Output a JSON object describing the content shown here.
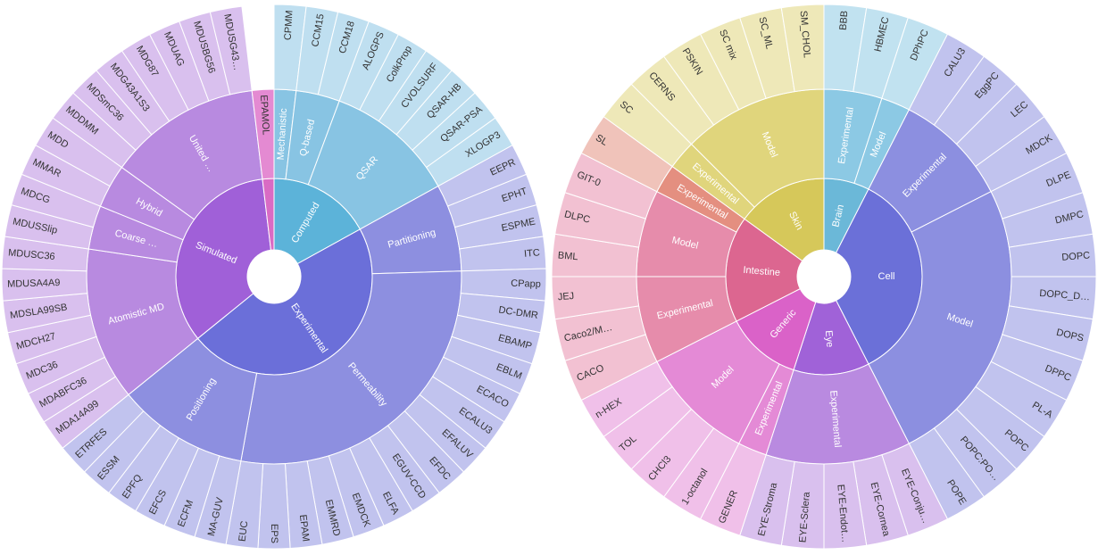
{
  "chart_data": [
    {
      "type": "sunburst",
      "title": "",
      "tree": [
        {
          "name": "Computed",
          "color": "#5cb3d9",
          "children": [
            {
              "name": "Mechanistic",
              "color": "#88c4e3",
              "children": [
                {
                  "name": "CPMM",
                  "value": 1
                }
              ]
            },
            {
              "name": "Q-based",
              "color": "#88c4e3",
              "children": [
                {
                  "name": "CCM15",
                  "value": 1
                },
                {
                  "name": "CCM18",
                  "value": 1
                }
              ]
            },
            {
              "name": "QSAR",
              "color": "#88c4e3",
              "children": [
                {
                  "name": "ALOGPS",
                  "value": 1
                },
                {
                  "name": "ColkProp",
                  "value": 1
                },
                {
                  "name": "CVOLSURF",
                  "value": 1
                },
                {
                  "name": "QSAR-HB",
                  "value": 1
                },
                {
                  "name": "QSAR-PSA",
                  "value": 1
                },
                {
                  "name": "XLOGP3",
                  "value": 1
                }
              ]
            }
          ]
        },
        {
          "name": "Experimental",
          "color": "#6b6fd9",
          "children": [
            {
              "name": "Partitioning",
              "color": "#8d8fe0",
              "children": [
                {
                  "name": "EEPR",
                  "value": 1
                },
                {
                  "name": "EPHT",
                  "value": 1
                },
                {
                  "name": "ESPME",
                  "value": 1
                },
                {
                  "name": "ITC",
                  "value": 1
                }
              ]
            },
            {
              "name": "Permeability",
              "color": "#8d8fe0",
              "children": [
                {
                  "name": "CPapp",
                  "value": 1
                },
                {
                  "name": "DC-DMR",
                  "value": 1
                },
                {
                  "name": "EBAMP",
                  "value": 1
                },
                {
                  "name": "EBLM",
                  "value": 1
                },
                {
                  "name": "ECACO",
                  "value": 1
                },
                {
                  "name": "ECALU3",
                  "value": 1
                },
                {
                  "name": "EFALUV",
                  "value": 1
                },
                {
                  "name": "EFDC",
                  "value": 1
                },
                {
                  "name": "EGUV-CCD",
                  "value": 1
                },
                {
                  "name": "ELFA",
                  "value": 1
                },
                {
                  "name": "EMDCK",
                  "value": 1
                },
                {
                  "name": "EMMRD",
                  "value": 1
                },
                {
                  "name": "EPAM",
                  "value": 1
                },
                {
                  "name": "EPS",
                  "value": 1
                },
                {
                  "name": "EUC",
                  "value": 1
                }
              ]
            },
            {
              "name": "Positioning",
              "color": "#8d8fe0",
              "children": [
                {
                  "name": "MA-GUV",
                  "value": 1
                },
                {
                  "name": "ECFM",
                  "value": 1
                },
                {
                  "name": "EFCS",
                  "value": 1
                },
                {
                  "name": "EPFQ",
                  "value": 1
                },
                {
                  "name": "ESSM",
                  "value": 1
                },
                {
                  "name": "ETRFES",
                  "value": 1
                }
              ]
            }
          ]
        },
        {
          "name": "Simulated",
          "color": "#a060d8",
          "children": [
            {
              "name": "Atomistic MD",
              "color": "#b88ae0",
              "children": [
                {
                  "name": "MDA14A99",
                  "value": 1
                },
                {
                  "name": "MDABFC36",
                  "value": 1
                },
                {
                  "name": "MDC36",
                  "value": 1
                },
                {
                  "name": "MDCH27",
                  "value": 1
                },
                {
                  "name": "MDSLA99SB",
                  "value": 1
                },
                {
                  "name": "MDUSA4A9",
                  "value": 1
                },
                {
                  "name": "MDUSC36",
                  "value": 1
                }
              ]
            },
            {
              "name": "Coarse …",
              "color": "#b88ae0",
              "children": [
                {
                  "name": "MDUSSlip",
                  "value": 1
                },
                {
                  "name": "MDCG",
                  "value": 1
                }
              ]
            },
            {
              "name": "Hybrid",
              "color": "#b88ae0",
              "children": [
                {
                  "name": "MMAR",
                  "value": 1
                },
                {
                  "name": "MDD",
                  "value": 1
                }
              ]
            },
            {
              "name": "United …",
              "color": "#b88ae0",
              "children": [
                {
                  "name": "MDDMM",
                  "value": 1
                },
                {
                  "name": "MDSmC36",
                  "value": 1
                },
                {
                  "name": "MDG43A1S3",
                  "value": 1
                },
                {
                  "name": "MDG87",
                  "value": 1
                },
                {
                  "name": "MDUAG",
                  "value": 1
                },
                {
                  "name": "MDUSBG56",
                  "value": 1
                },
                {
                  "name": "MDUSG43…",
                  "value": 1
                }
              ]
            }
          ]
        },
        {
          "name": "",
          "color": "#d96bc4",
          "children": [
            {
              "name": "EPAMOL",
              "color": "#e48ad2",
              "value": 1
            }
          ]
        }
      ]
    },
    {
      "type": "sunburst",
      "title": "",
      "tree": [
        {
          "name": "Brain",
          "color": "#6bb8d8",
          "children": [
            {
              "name": "Experimental",
              "color": "#8cc9e4",
              "children": [
                {
                  "name": "BBB",
                  "value": 1
                },
                {
                  "name": "HBMEC",
                  "value": 1
                }
              ]
            },
            {
              "name": "Model",
              "color": "#8cc9e4",
              "children": [
                {
                  "name": "DPhPC",
                  "value": 1
                }
              ]
            }
          ]
        },
        {
          "name": "Cell",
          "color": "#6b70d8",
          "children": [
            {
              "name": "Experimental",
              "color": "#8c8fe0",
              "children": [
                {
                  "name": "CALU3",
                  "value": 1
                },
                {
                  "name": "EggPC",
                  "value": 1
                },
                {
                  "name": "LEC",
                  "value": 1
                },
                {
                  "name": "MDCK",
                  "value": 1
                }
              ]
            },
            {
              "name": "Model",
              "color": "#8c8fe0",
              "children": [
                {
                  "name": "DLPE",
                  "value": 1
                },
                {
                  "name": "DMPC",
                  "value": 1
                },
                {
                  "name": "DOPC",
                  "value": 1
                },
                {
                  "name": "DOPC_D…",
                  "value": 1
                },
                {
                  "name": "DOPS",
                  "value": 1
                },
                {
                  "name": "DPPC",
                  "value": 1
                },
                {
                  "name": "PL-A",
                  "value": 1
                },
                {
                  "name": "POPC",
                  "value": 1
                },
                {
                  "name": "POPC:PO…",
                  "value": 1
                },
                {
                  "name": "POPE",
                  "value": 1
                }
              ]
            }
          ]
        },
        {
          "name": "Eye",
          "color": "#a062d8",
          "children": [
            {
              "name": "Experimental",
              "color": "#b98ae0",
              "children": [
                {
                  "name": "EYE-Conju…",
                  "value": 1
                },
                {
                  "name": "EYE-Cornea",
                  "value": 1
                },
                {
                  "name": "EYE-Endot…",
                  "value": 1
                },
                {
                  "name": "EYE-Sclera",
                  "value": 1
                },
                {
                  "name": "EYE-Stroma",
                  "value": 1
                }
              ]
            }
          ]
        },
        {
          "name": "Generic",
          "color": "#da62c8",
          "children": [
            {
              "name": "Experimental",
              "color": "#e48ad6",
              "children": [
                {
                  "name": "GENER",
                  "value": 1
                }
              ]
            },
            {
              "name": "Model",
              "color": "#e48ad6",
              "children": [
                {
                  "name": "1-octanol",
                  "value": 1
                },
                {
                  "name": "CHCl3",
                  "value": 1
                },
                {
                  "name": "TOL",
                  "value": 1
                },
                {
                  "name": "n-HEX",
                  "value": 1
                }
              ]
            }
          ]
        },
        {
          "name": "Intestine",
          "color": "#dc6690",
          "children": [
            {
              "name": "Experimental",
              "color": "#e68cab",
              "children": [
                {
                  "name": "CACO",
                  "value": 1
                },
                {
                  "name": "Caco2/M…",
                  "value": 1
                },
                {
                  "name": "JEJ",
                  "value": 1
                }
              ]
            },
            {
              "name": "Model",
              "color": "#e68cab",
              "children": [
                {
                  "name": "BML",
                  "value": 1
                },
                {
                  "name": "DLPC",
                  "value": 1
                },
                {
                  "name": "GIT-0",
                  "value": 1
                }
              ]
            },
            {
              "name": "Experimental",
              "color": "#e48f80",
              "children": [
                {
                  "name": "SL",
                  "value": 1
                }
              ]
            }
          ]
        },
        {
          "name": "Skin",
          "color": "#d6c85a",
          "children": [
            {
              "name": "Experimental",
              "color": "#e0d57c",
              "children": [
                {
                  "name": "SC",
                  "value": 1
                }
              ]
            },
            {
              "name": "Model",
              "color": "#e0d57c",
              "children": [
                {
                  "name": "CERNS",
                  "value": 1
                },
                {
                  "name": "PSKIN",
                  "value": 1
                },
                {
                  "name": "SC mix",
                  "value": 1
                },
                {
                  "name": "SC_ML",
                  "value": 1
                },
                {
                  "name": "SM_CHOL",
                  "value": 1
                }
              ]
            }
          ]
        }
      ]
    }
  ]
}
